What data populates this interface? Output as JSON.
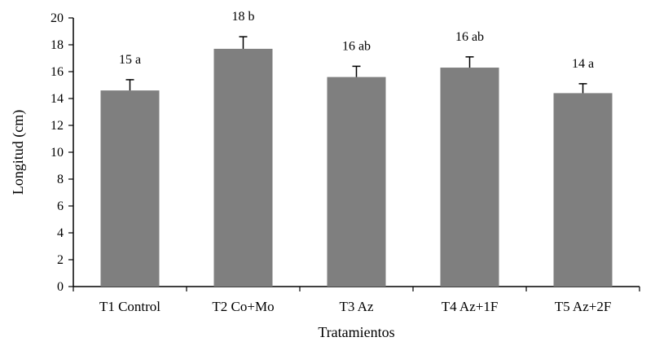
{
  "chart_data": {
    "type": "bar",
    "categories": [
      "T1 Control",
      "T2 Co+Mo",
      "T3 Az",
      "T4 Az+1F",
      "T5 Az+2F"
    ],
    "values": [
      14.6,
      17.7,
      15.6,
      16.3,
      14.4
    ],
    "errors": [
      0.8,
      0.9,
      0.8,
      0.8,
      0.7
    ],
    "data_labels": [
      "15 a",
      "18 b",
      "16 ab",
      "16 ab",
      "14 a"
    ],
    "xlabel": "Tratamientos",
    "ylabel": "Longitud (cm)",
    "ylim": [
      0,
      20
    ],
    "yticks": [
      0,
      2,
      4,
      6,
      8,
      10,
      12,
      14,
      16,
      18,
      20
    ],
    "grid": false,
    "colors": {
      "bar": "#7f7f7f",
      "axis": "#000000"
    }
  }
}
